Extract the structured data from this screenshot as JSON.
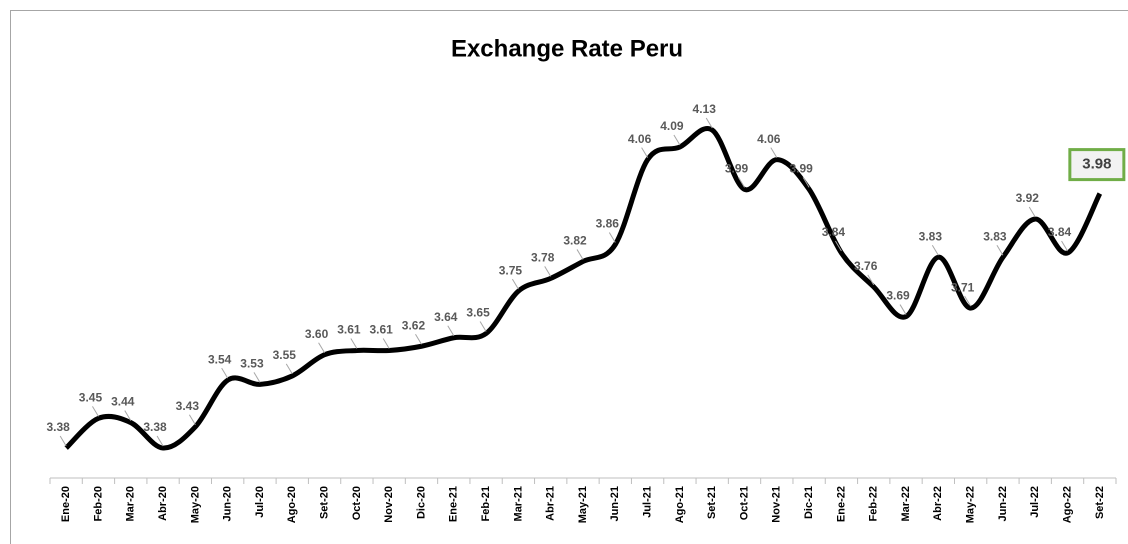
{
  "chart_data": {
    "type": "line",
    "title": "Exchange Rate Peru",
    "categories": [
      "Ene-20",
      "Feb-20",
      "Mar-20",
      "Abr-20",
      "May-20",
      "Jun-20",
      "Jul-20",
      "Ago-20",
      "Set-20",
      "Oct-20",
      "Nov-20",
      "Dic-20",
      "Ene-21",
      "Feb-21",
      "Mar-21",
      "Abr-21",
      "May-21",
      "Jun-21",
      "Jul-21",
      "Ago-21",
      "Set-21",
      "Oct-21",
      "Nov-21",
      "Dic-21",
      "Ene-22",
      "Feb-22",
      "Mar-22",
      "Abr-22",
      "May-22",
      "Jun-22",
      "Jul-22",
      "Ago-22",
      "Set-22"
    ],
    "series": [
      {
        "name": "Exchange Rate",
        "color": "#000000",
        "values": [
          3.38,
          3.45,
          3.44,
          3.38,
          3.43,
          3.54,
          3.53,
          3.55,
          3.6,
          3.61,
          3.61,
          3.62,
          3.64,
          3.65,
          3.75,
          3.78,
          3.82,
          3.86,
          4.06,
          4.09,
          4.13,
          3.99,
          4.06,
          3.99,
          3.84,
          3.76,
          3.69,
          3.83,
          3.71,
          3.83,
          3.92,
          3.84,
          3.98
        ],
        "value_labels": [
          "3.38",
          "3.45",
          "3.44",
          "3.38",
          "3.43",
          "3.54",
          "3.53",
          "3.55",
          "3.60",
          "3.61",
          "3.61",
          "3.62",
          "3.64",
          "3.65",
          "3.75",
          "3.78",
          "3.82",
          "3.86",
          "4.06",
          "4.09",
          "4.13",
          "3.99",
          "4.06",
          "3.99",
          "3.84",
          "3.76",
          "3.69",
          "3.83",
          "3.71",
          "3.83",
          "3.92",
          "3.84",
          "3.98"
        ]
      }
    ]
  }
}
